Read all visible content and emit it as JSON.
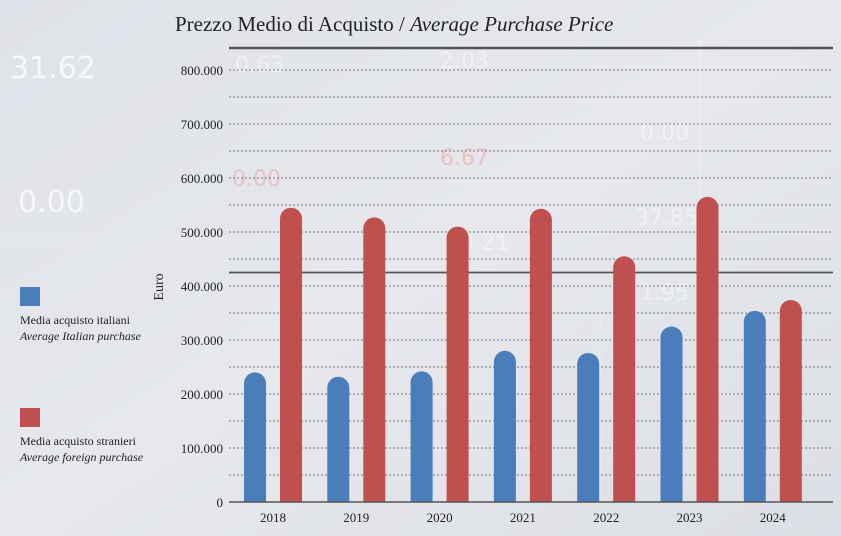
{
  "title": {
    "it": "Prezzo Medio di Acquisto",
    "sep": " / ",
    "en": "Average Purchase Price"
  },
  "legend": [
    {
      "it": "Media acquisto italiani",
      "en": "Average Italian purchase",
      "color": "#4a7ebb"
    },
    {
      "it": "Media acquisto stranieri",
      "en": "Average foreign purchase",
      "color": "#c0504d"
    }
  ],
  "chart_data": {
    "type": "bar",
    "categories": [
      "2018",
      "2019",
      "2020",
      "2021",
      "2022",
      "2023",
      "2024"
    ],
    "series": [
      {
        "name": "Media acquisto italiani / Average Italian purchase",
        "color": "#4a7ebb",
        "values": [
          240000,
          232000,
          242000,
          280000,
          276000,
          325000,
          354000
        ]
      },
      {
        "name": "Media acquisto stranieri / Average foreign purchase",
        "color": "#c0504d",
        "values": [
          545000,
          527000,
          510000,
          543000,
          455000,
          565000,
          374000
        ]
      }
    ],
    "ylabel": "Euro",
    "xlabel": "",
    "ylim": [
      0,
      800000
    ],
    "yticks": [
      0,
      100000,
      200000,
      300000,
      400000,
      500000,
      600000,
      700000,
      800000
    ],
    "ytick_labels": [
      "0",
      "100.000",
      "200.000",
      "300.000",
      "400.000",
      "500.000",
      "600.000",
      "700.000",
      "800.000"
    ],
    "grid": true
  }
}
